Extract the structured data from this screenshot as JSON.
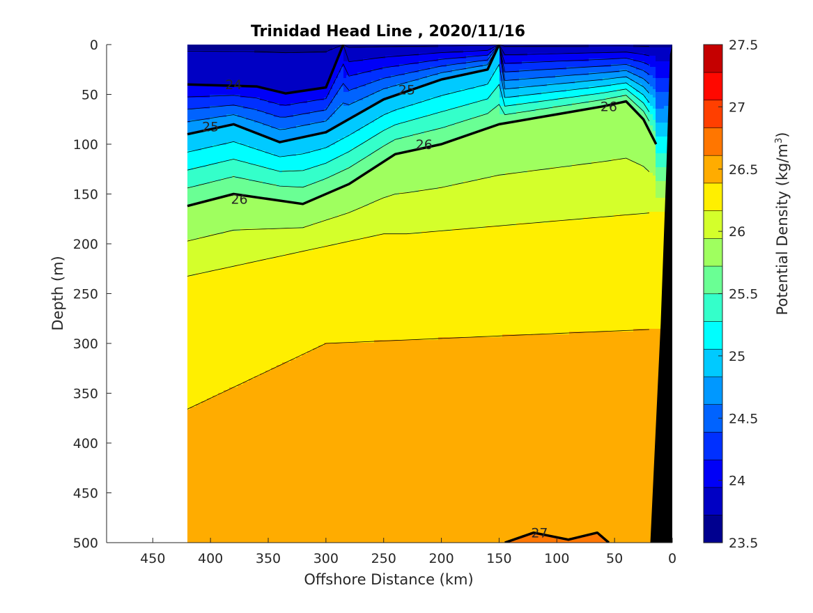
{
  "chart_data": {
    "type": "heatmap",
    "subtype": "filled-contour section",
    "title": "Trinidad Head Line , 2020/11/16",
    "xlabel": "Offshore Distance (km)",
    "ylabel": "Depth (m)",
    "x_reversed": true,
    "y_reversed": true,
    "xlim": [
      490,
      0
    ],
    "ylim": [
      500,
      0
    ],
    "x_ticks": [
      450,
      400,
      350,
      300,
      250,
      200,
      150,
      100,
      50,
      0
    ],
    "y_ticks": [
      0,
      50,
      100,
      150,
      200,
      250,
      300,
      350,
      400,
      450,
      500
    ],
    "grid": false,
    "data_x_extent": [
      420,
      0
    ],
    "colorbar": {
      "label": "Potential Density (kg/m",
      "label_superscript": "3",
      "label_close": ")",
      "range": [
        23.5,
        27.5
      ],
      "step": 0.25,
      "ticks": [
        23.5,
        24,
        24.5,
        25,
        25.5,
        26,
        26.5,
        27,
        27.5
      ],
      "colors": [
        "#00008f",
        "#0000c4",
        "#0000f7",
        "#0030ff",
        "#0063ff",
        "#0098ff",
        "#00caff",
        "#00fefe",
        "#34ffca",
        "#6aff94",
        "#9fff5f",
        "#d4ff2b",
        "#ffef00",
        "#ffac00",
        "#ff7600",
        "#ff3f00",
        "#ff0800",
        "#c50000"
      ]
    },
    "labeled_contours": [
      {
        "level": 24,
        "depth_profile": [
          [
            420,
            40
          ],
          [
            360,
            42
          ],
          [
            335,
            49
          ],
          [
            300,
            43
          ],
          [
            285,
            0
          ]
        ],
        "label_positions": [
          [
            380,
            40
          ]
        ]
      },
      {
        "level": 25,
        "depth_profile": [
          [
            420,
            90
          ],
          [
            380,
            80
          ],
          [
            340,
            98
          ],
          [
            300,
            88
          ],
          [
            250,
            55
          ],
          [
            200,
            35
          ],
          [
            160,
            25
          ],
          [
            150,
            0
          ]
        ],
        "label_positions": [
          [
            400,
            82
          ],
          [
            230,
            45
          ]
        ]
      },
      {
        "level": 26,
        "depth_profile": [
          [
            420,
            162
          ],
          [
            380,
            150
          ],
          [
            320,
            160
          ],
          [
            280,
            140
          ],
          [
            240,
            110
          ],
          [
            200,
            100
          ],
          [
            150,
            80
          ],
          [
            100,
            70
          ],
          [
            60,
            62
          ],
          [
            40,
            57
          ],
          [
            25,
            75
          ],
          [
            14,
            100
          ]
        ],
        "label_positions": [
          [
            375,
            155
          ],
          [
            215,
            100
          ],
          [
            55,
            62
          ]
        ]
      },
      {
        "level": 27,
        "depth_profile": [
          [
            145,
            500
          ],
          [
            120,
            490
          ],
          [
            90,
            497
          ],
          [
            65,
            490
          ],
          [
            55,
            500
          ]
        ],
        "label_positions": [
          [
            115,
            490
          ]
        ]
      }
    ],
    "bathymetry_fill": "#000000",
    "bathymetry": [
      [
        0,
        0
      ],
      [
        2,
        10
      ],
      [
        5,
        120
      ],
      [
        10,
        280
      ],
      [
        19,
        500
      ],
      [
        26,
        500
      ]
    ]
  }
}
